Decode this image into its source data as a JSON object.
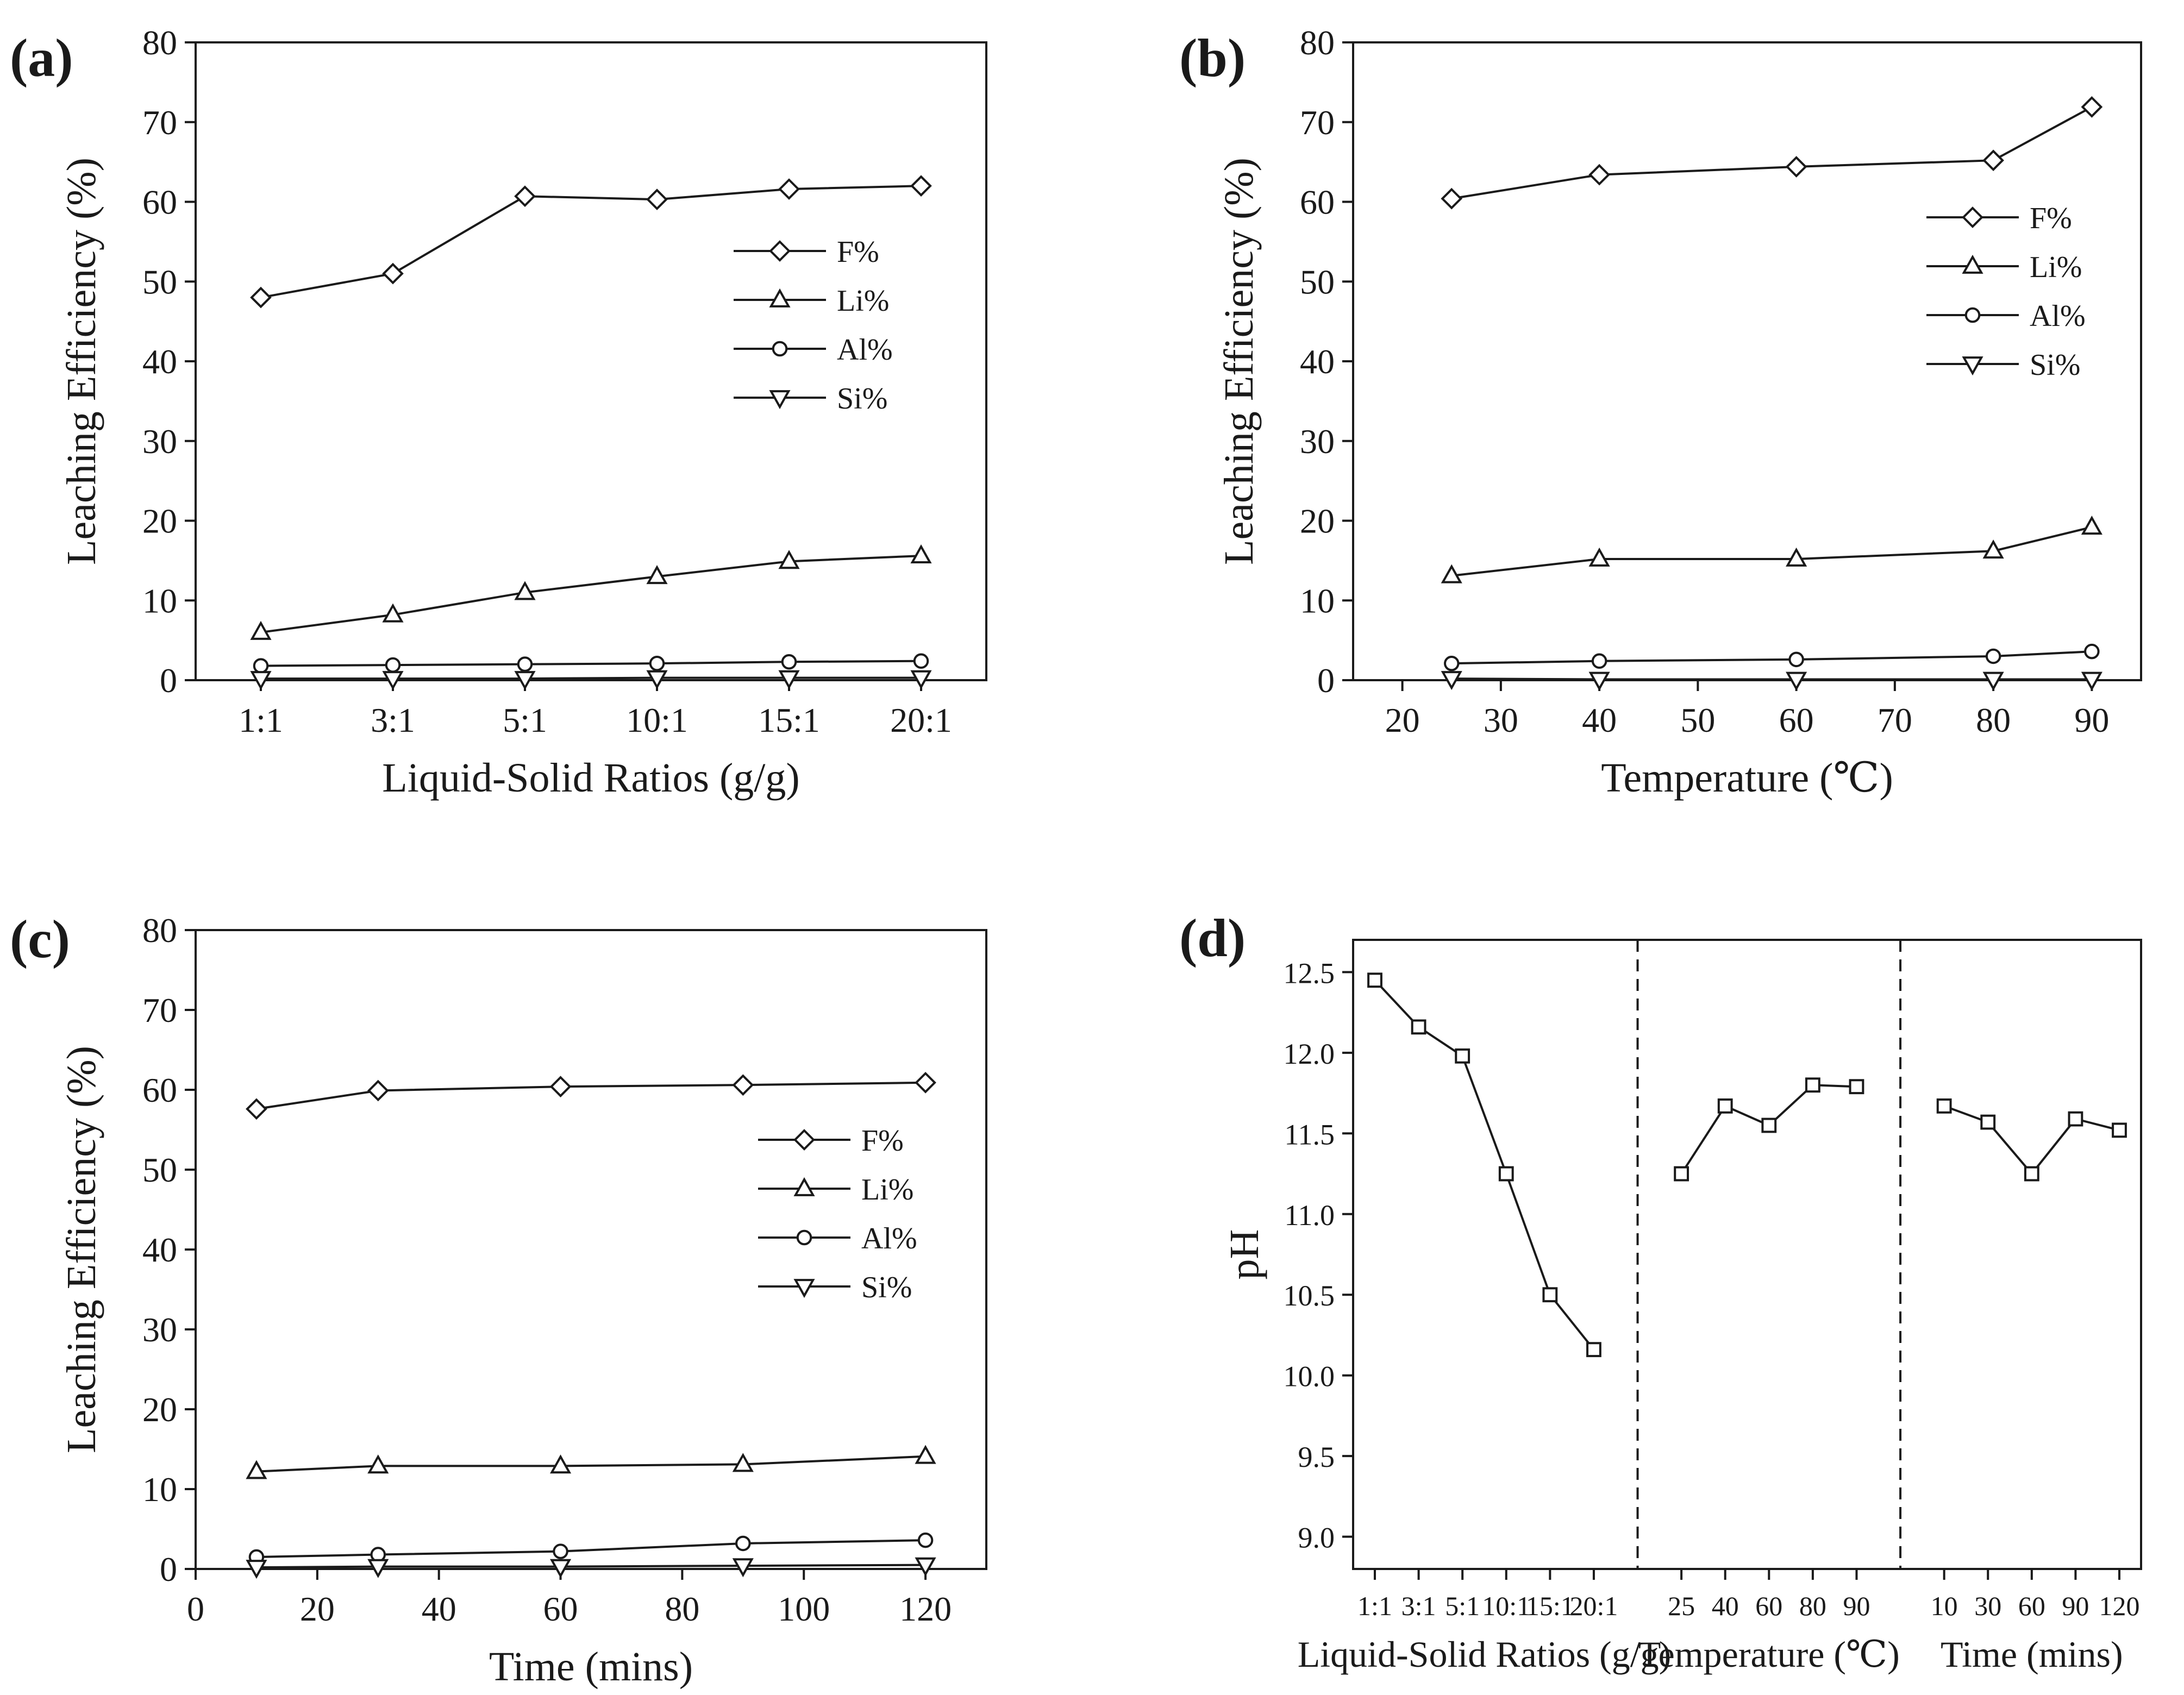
{
  "chart_data": [
    {
      "panel": "(a)",
      "type": "line",
      "xlabel": "Liquid-Solid Ratios (g/g)",
      "ylabel": "Leaching Efficiency (%)",
      "x_scale": "categorical",
      "categories": [
        "1:1",
        "3:1",
        "5:1",
        "10:1",
        "15:1",
        "20:1"
      ],
      "ylim": [
        0,
        80
      ],
      "yticks": [
        "0",
        "10",
        "20",
        "30",
        "40",
        "50",
        "60",
        "70",
        "80"
      ],
      "legend": "center-right",
      "grid": false,
      "series": [
        {
          "name": "F%",
          "marker": "diamond",
          "values": [
            48.0,
            51.0,
            60.7,
            60.3,
            61.6,
            62.0
          ]
        },
        {
          "name": "Li%",
          "marker": "triangle-up",
          "values": [
            6.0,
            8.2,
            11.0,
            13.0,
            14.9,
            15.6
          ]
        },
        {
          "name": "Al%",
          "marker": "circle",
          "values": [
            1.8,
            1.9,
            2.0,
            2.1,
            2.3,
            2.4
          ]
        },
        {
          "name": "Si%",
          "marker": "triangle-down",
          "values": [
            0.2,
            0.2,
            0.2,
            0.3,
            0.3,
            0.3
          ]
        }
      ]
    },
    {
      "panel": "(b)",
      "type": "line",
      "xlabel": "Temperature (℃)",
      "ylabel": "Leaching Efficiency (%)",
      "x_scale": "linear",
      "xlim": [
        15,
        95
      ],
      "xticks": [
        20,
        30,
        40,
        50,
        60,
        70,
        80,
        90
      ],
      "x": [
        25,
        40,
        60,
        80,
        90
      ],
      "ylim": [
        0,
        80
      ],
      "yticks": [
        "0",
        "10",
        "20",
        "30",
        "40",
        "50",
        "60",
        "70",
        "80"
      ],
      "legend": "top-right",
      "grid": false,
      "series": [
        {
          "name": "F%",
          "marker": "diamond",
          "values": [
            60.4,
            63.4,
            64.4,
            65.2,
            71.9
          ]
        },
        {
          "name": "Li%",
          "marker": "triangle-up",
          "values": [
            13.1,
            15.2,
            15.2,
            16.2,
            19.2
          ]
        },
        {
          "name": "Al%",
          "marker": "circle",
          "values": [
            2.1,
            2.4,
            2.6,
            3.0,
            3.6
          ]
        },
        {
          "name": "Si%",
          "marker": "triangle-down",
          "values": [
            0.2,
            0.1,
            0.1,
            0.1,
            0.1
          ]
        }
      ]
    },
    {
      "panel": "(c)",
      "type": "line",
      "xlabel": "Time (mins)",
      "ylabel": "Leaching Efficiency (%)",
      "x_scale": "linear",
      "xlim": [
        0,
        130
      ],
      "xticks": [
        0,
        20,
        40,
        60,
        80,
        100,
        120
      ],
      "x": [
        10,
        30,
        60,
        90,
        120
      ],
      "ylim": [
        0,
        80
      ],
      "yticks": [
        "0",
        "10",
        "20",
        "30",
        "40",
        "50",
        "60",
        "70",
        "80"
      ],
      "legend": "center-right",
      "grid": false,
      "series": [
        {
          "name": "F%",
          "marker": "diamond",
          "values": [
            57.6,
            59.9,
            60.4,
            60.6,
            60.9
          ]
        },
        {
          "name": "Li%",
          "marker": "triangle-up",
          "values": [
            12.2,
            12.9,
            12.9,
            13.1,
            14.1
          ]
        },
        {
          "name": "Al%",
          "marker": "circle",
          "values": [
            1.5,
            1.8,
            2.2,
            3.2,
            3.6
          ]
        },
        {
          "name": "Si%",
          "marker": "triangle-down",
          "values": [
            0.2,
            0.3,
            0.3,
            0.4,
            0.5
          ]
        }
      ]
    },
    {
      "panel": "(d)",
      "type": "line",
      "xlabel_groups": [
        "Liquid-Solid Ratios (g/g)",
        "Temperature (℃)",
        "Time (mins)"
      ],
      "ylabel": "pH",
      "ylim": [
        8.8,
        12.7
      ],
      "yticks": [
        "9.0",
        "9.5",
        "10.0",
        "10.5",
        "11.0",
        "11.5",
        "12.0",
        "12.5"
      ],
      "grid": false,
      "groups": [
        {
          "categories": [
            "1:1",
            "3:1",
            "5:1",
            "10:1",
            "15:1",
            "20:1"
          ],
          "values": [
            12.45,
            12.16,
            11.98,
            11.25,
            10.5,
            10.16
          ]
        },
        {
          "categories": [
            "25",
            "40",
            "60",
            "80",
            "90"
          ],
          "values": [
            11.25,
            11.67,
            11.55,
            11.8,
            11.79
          ]
        },
        {
          "categories": [
            "10",
            "30",
            "60",
            "90",
            "120"
          ],
          "values": [
            11.67,
            11.57,
            11.25,
            11.59,
            11.52
          ]
        }
      ],
      "marker": "square"
    }
  ]
}
